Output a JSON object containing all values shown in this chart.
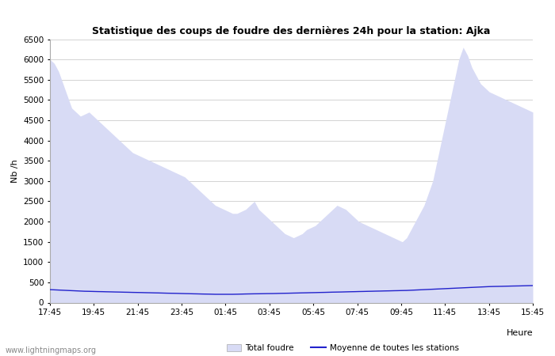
{
  "title": "Statistique des coups de foudre des dernières 24h pour la station: Ajka",
  "ylabel": "Nb /h",
  "xlabel": "Heure",
  "watermark": "www.lightningmaps.org",
  "x_ticks": [
    "17:45",
    "19:45",
    "21:45",
    "23:45",
    "01:45",
    "03:45",
    "05:45",
    "07:45",
    "09:45",
    "11:45",
    "13:45",
    "15:45"
  ],
  "ylim": [
    0,
    6500
  ],
  "y_ticks": [
    0,
    500,
    1000,
    1500,
    2000,
    2500,
    3000,
    3500,
    4000,
    4500,
    5000,
    5500,
    6000,
    6500
  ],
  "bg_color": "#ffffff",
  "grid_color": "#cccccc",
  "fill_total_color": "#d8dbf5",
  "fill_local_color": "#b0b8ee",
  "line_color": "#2222cc",
  "legend_total": "Total foudre",
  "legend_mean": "Moyenne de toutes les stations",
  "total_foudre": [
    6000,
    5900,
    5700,
    5400,
    5100,
    4800,
    4700,
    4600,
    4650,
    4700,
    4600,
    4500,
    4400,
    4300,
    4200,
    4100,
    4000,
    3900,
    3800,
    3700,
    3650,
    3600,
    3550,
    3500,
    3450,
    3400,
    3350,
    3300,
    3250,
    3200,
    3150,
    3100,
    3000,
    2900,
    2800,
    2700,
    2600,
    2500,
    2400,
    2350,
    2300,
    2250,
    2200,
    2200,
    2250,
    2300,
    2400,
    2500,
    2300,
    2200,
    2100,
    2000,
    1900,
    1800,
    1700,
    1650,
    1600,
    1650,
    1700,
    1800,
    1850,
    1900,
    2000,
    2100,
    2200,
    2300,
    2400,
    2350,
    2300,
    2200,
    2100,
    2000,
    1950,
    1900,
    1850,
    1800,
    1750,
    1700,
    1650,
    1600,
    1550,
    1500,
    1600,
    1800,
    2000,
    2200,
    2400,
    2700,
    3000,
    3500,
    4000,
    4500,
    5000,
    5500,
    6000,
    6300,
    6100,
    5800,
    5600,
    5400,
    5300,
    5200,
    5150,
    5100,
    5050,
    5000,
    4950,
    4900,
    4850,
    4800,
    4750,
    4700
  ],
  "local_foudre": [
    0,
    0,
    0,
    0,
    0,
    0,
    0,
    0,
    0,
    0,
    0,
    0,
    0,
    0,
    0,
    0,
    0,
    0,
    0,
    0,
    0,
    0,
    0,
    0,
    0,
    0,
    0,
    0,
    0,
    0,
    0,
    0,
    0,
    0,
    0,
    0,
    0,
    0,
    0,
    0,
    0,
    0,
    0,
    0,
    0,
    0,
    0,
    0,
    0,
    0,
    0,
    0,
    0,
    0,
    0,
    0,
    0,
    0,
    0,
    0,
    0,
    0,
    0,
    0,
    0,
    0,
    0,
    0,
    0,
    0,
    0,
    0,
    0,
    0,
    0,
    0,
    0,
    0,
    0,
    0,
    0,
    0,
    0,
    0,
    0,
    0,
    0,
    0,
    0,
    0,
    0,
    0,
    0,
    0,
    0,
    0,
    0,
    0,
    0,
    0,
    0,
    0,
    0,
    0,
    0,
    0,
    0,
    0,
    0,
    0,
    0,
    0
  ],
  "moyenne": [
    320,
    315,
    310,
    305,
    300,
    295,
    290,
    285,
    280,
    278,
    275,
    272,
    270,
    267,
    265,
    262,
    260,
    257,
    255,
    252,
    250,
    248,
    245,
    243,
    240,
    238,
    235,
    232,
    230,
    228,
    225,
    222,
    220,
    217,
    215,
    212,
    210,
    208,
    205,
    205,
    205,
    205,
    205,
    207,
    210,
    213,
    215,
    217,
    218,
    220,
    222,
    223,
    225,
    228,
    230,
    232,
    235,
    237,
    240,
    242,
    245,
    247,
    250,
    252,
    255,
    258,
    260,
    262,
    265,
    268,
    270,
    273,
    275,
    278,
    280,
    283,
    285,
    288,
    290,
    293,
    295,
    298,
    300,
    305,
    310,
    315,
    320,
    325,
    330,
    335,
    340,
    345,
    350,
    355,
    360,
    365,
    370,
    375,
    380,
    385,
    390,
    395,
    398,
    400,
    402,
    405,
    408,
    410,
    412,
    415,
    418,
    420
  ]
}
